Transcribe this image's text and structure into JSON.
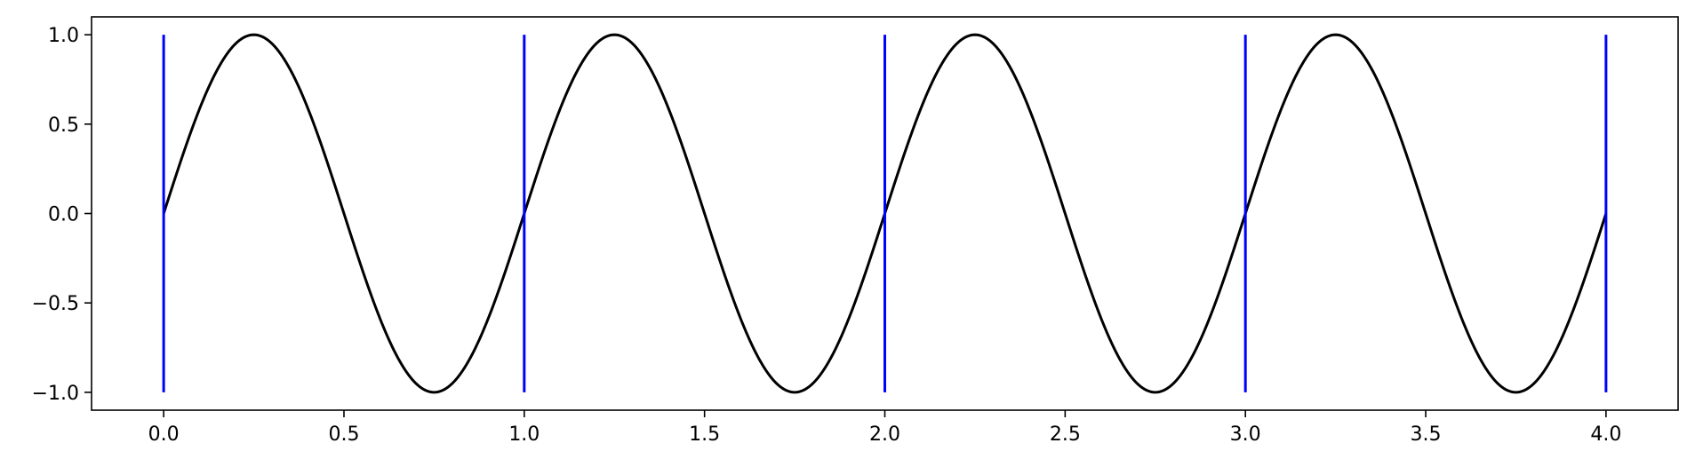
{
  "chart_data": {
    "type": "line",
    "title": "",
    "xlabel": "",
    "ylabel": "",
    "xlim": [
      -0.2,
      4.2
    ],
    "ylim": [
      -1.1,
      1.1
    ],
    "grid": false,
    "x_ticks": [
      "0.0",
      "0.5",
      "1.0",
      "1.5",
      "2.0",
      "2.5",
      "3.0",
      "3.5",
      "4.0"
    ],
    "y_ticks": [
      "1.0",
      "0.5",
      "0.0",
      "−0.5",
      "−1.0"
    ],
    "series": [
      {
        "function": "sin(2πx)",
        "x_range": [
          0,
          4
        ],
        "color": "#000000"
      }
    ],
    "vertical_lines": {
      "x": [
        0,
        1,
        2,
        3,
        4
      ],
      "ymin": -1,
      "ymax": 1,
      "color": "#0000ff"
    }
  }
}
